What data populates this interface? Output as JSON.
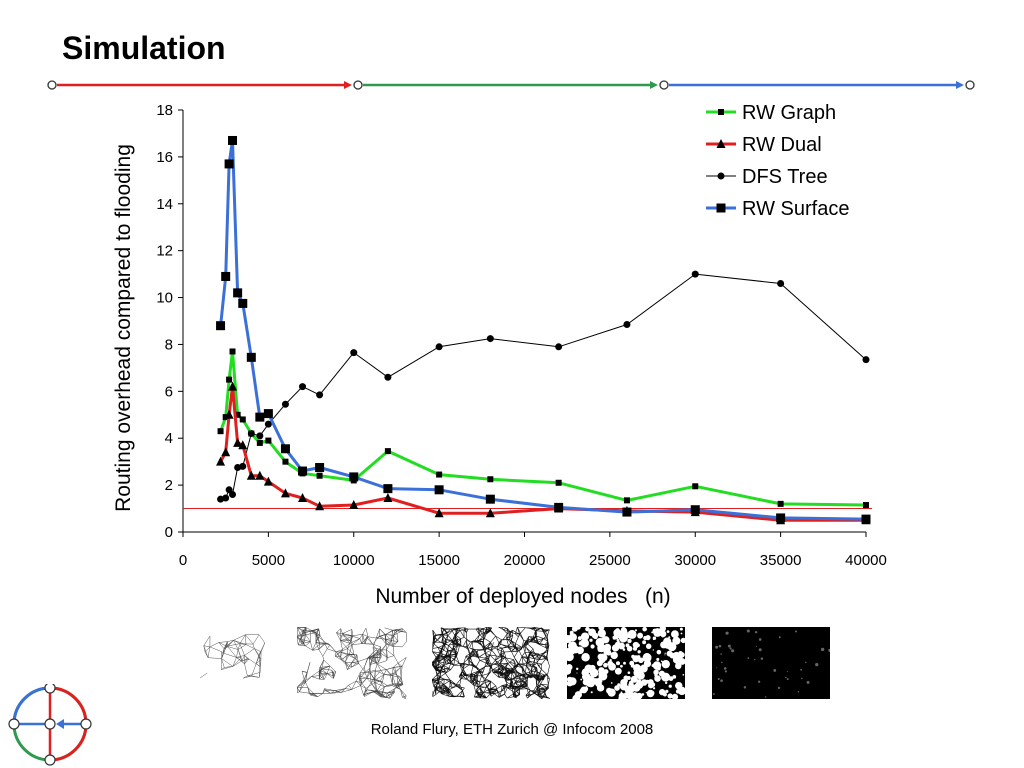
{
  "slide": {
    "title": "Simulation",
    "footer": "Roland Flury, ETH Zurich @ Infocom 2008"
  },
  "timeline": {
    "segments": [
      {
        "color": "#e02020"
      },
      {
        "color": "#2e9a4e"
      },
      {
        "color": "#3a70d8"
      }
    ]
  },
  "chart_data": {
    "type": "line",
    "xlabel": "Number of deployed nodes   (n)",
    "ylabel": "Routing overhead compared to flooding",
    "xlim": [
      0,
      40000
    ],
    "ylim": [
      0,
      18
    ],
    "xticks": [
      0,
      5000,
      10000,
      15000,
      20000,
      25000,
      30000,
      35000,
      40000
    ],
    "yticks": [
      0,
      2,
      4,
      6,
      8,
      10,
      12,
      14,
      16,
      18
    ],
    "grid": false,
    "legend_position": "top-right",
    "reference_line": {
      "y": 1,
      "color": "#e02020"
    },
    "series": [
      {
        "name": "RW Graph",
        "color": "#22dd22",
        "marker": "small-square",
        "points": [
          [
            2200,
            4.3
          ],
          [
            2500,
            4.9
          ],
          [
            2700,
            6.5
          ],
          [
            2900,
            7.7
          ],
          [
            3200,
            5.0
          ],
          [
            3500,
            4.8
          ],
          [
            4000,
            4.2
          ],
          [
            4500,
            3.8
          ],
          [
            5000,
            3.9
          ],
          [
            6000,
            3.0
          ],
          [
            7000,
            2.5
          ],
          [
            8000,
            2.4
          ],
          [
            10000,
            2.2
          ],
          [
            12000,
            3.45
          ],
          [
            15000,
            2.45
          ],
          [
            18000,
            2.25
          ],
          [
            22000,
            2.1
          ],
          [
            26000,
            1.35
          ],
          [
            30000,
            1.95
          ],
          [
            35000,
            1.2
          ],
          [
            40000,
            1.15
          ]
        ]
      },
      {
        "name": "RW Dual",
        "color": "#e02020",
        "marker": "triangle",
        "points": [
          [
            2200,
            3.0
          ],
          [
            2500,
            3.4
          ],
          [
            2700,
            5.0
          ],
          [
            2900,
            6.2
          ],
          [
            3200,
            3.8
          ],
          [
            3500,
            3.7
          ],
          [
            4000,
            2.4
          ],
          [
            4500,
            2.4
          ],
          [
            5000,
            2.15
          ],
          [
            6000,
            1.65
          ],
          [
            7000,
            1.45
          ],
          [
            8000,
            1.1
          ],
          [
            10000,
            1.15
          ],
          [
            12000,
            1.45
          ],
          [
            15000,
            0.8
          ],
          [
            18000,
            0.8
          ],
          [
            22000,
            1.0
          ],
          [
            26000,
            0.9
          ],
          [
            30000,
            0.85
          ],
          [
            35000,
            0.5
          ],
          [
            40000,
            0.5
          ]
        ]
      },
      {
        "name": "DFS Tree",
        "color": "#000000",
        "marker": "small-circle",
        "points": [
          [
            2200,
            1.4
          ],
          [
            2500,
            1.45
          ],
          [
            2700,
            1.8
          ],
          [
            2900,
            1.6
          ],
          [
            3200,
            2.75
          ],
          [
            3500,
            2.8
          ],
          [
            4000,
            4.2
          ],
          [
            4500,
            4.1
          ],
          [
            5000,
            4.6
          ],
          [
            6000,
            5.45
          ],
          [
            7000,
            6.2
          ],
          [
            8000,
            5.85
          ],
          [
            10000,
            7.65
          ],
          [
            12000,
            6.6
          ],
          [
            15000,
            7.9
          ],
          [
            18000,
            8.25
          ],
          [
            22000,
            7.9
          ],
          [
            26000,
            8.85
          ],
          [
            30000,
            11.0
          ],
          [
            35000,
            10.6
          ],
          [
            40000,
            7.35
          ]
        ]
      },
      {
        "name": "RW Surface",
        "color": "#3a70d8",
        "marker": "square",
        "points": [
          [
            2200,
            8.8
          ],
          [
            2500,
            10.9
          ],
          [
            2700,
            15.7
          ],
          [
            2900,
            16.7
          ],
          [
            3200,
            10.2
          ],
          [
            3500,
            9.75
          ],
          [
            4000,
            7.45
          ],
          [
            4500,
            4.9
          ],
          [
            5000,
            5.05
          ],
          [
            6000,
            3.55
          ],
          [
            7000,
            2.6
          ],
          [
            8000,
            2.75
          ],
          [
            10000,
            2.35
          ],
          [
            12000,
            1.85
          ],
          [
            15000,
            1.8
          ],
          [
            18000,
            1.4
          ],
          [
            22000,
            1.05
          ],
          [
            26000,
            0.85
          ],
          [
            30000,
            0.95
          ],
          [
            35000,
            0.6
          ],
          [
            40000,
            0.55
          ]
        ]
      }
    ]
  }
}
